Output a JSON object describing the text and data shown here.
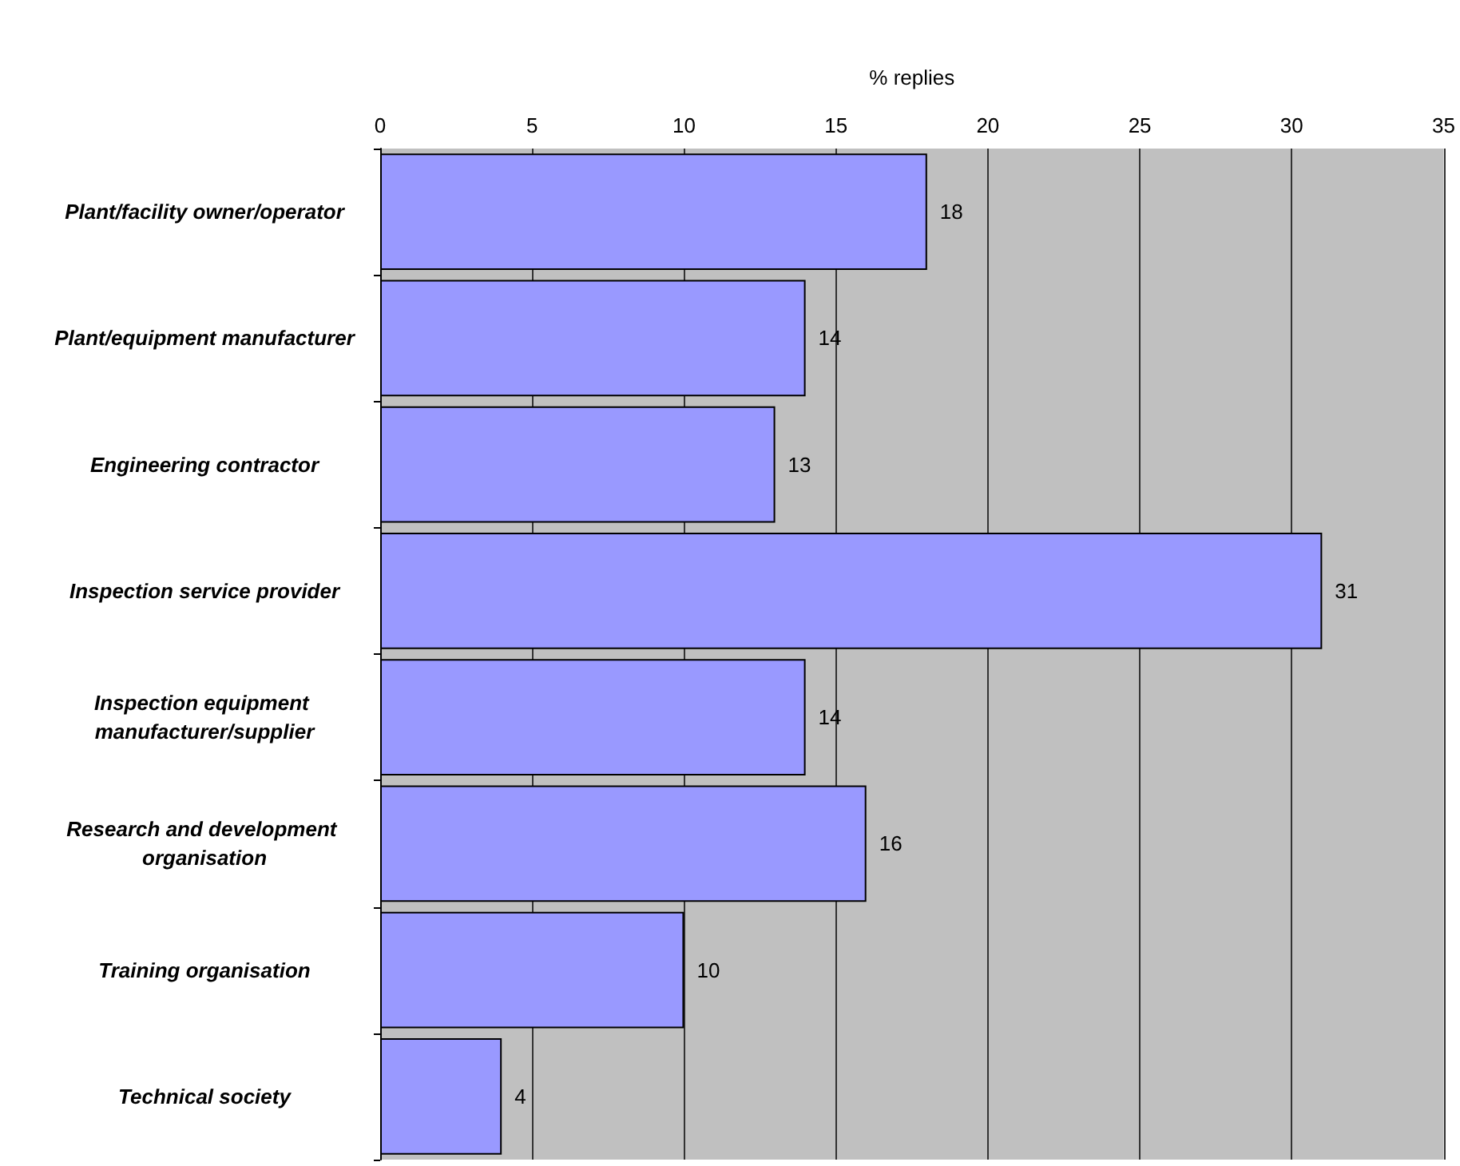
{
  "chart_data": {
    "type": "bar",
    "orientation": "horizontal",
    "xlabel": "% replies",
    "categories": [
      "Plant/facility owner/operator",
      "Plant/equipment manufacturer",
      "Engineering contractor",
      "Inspection service provider",
      "Inspection equipment manufacturer/supplier",
      "Research and development organisation",
      "Training organisation",
      "Technical society"
    ],
    "values": [
      18,
      14,
      13,
      31,
      14,
      16,
      10,
      4
    ],
    "color": "#9999ff",
    "xlim": [
      0,
      35
    ],
    "xticks": [
      0,
      5,
      10,
      15,
      20,
      25,
      30,
      35
    ],
    "grid": "x",
    "data_labels": true
  }
}
